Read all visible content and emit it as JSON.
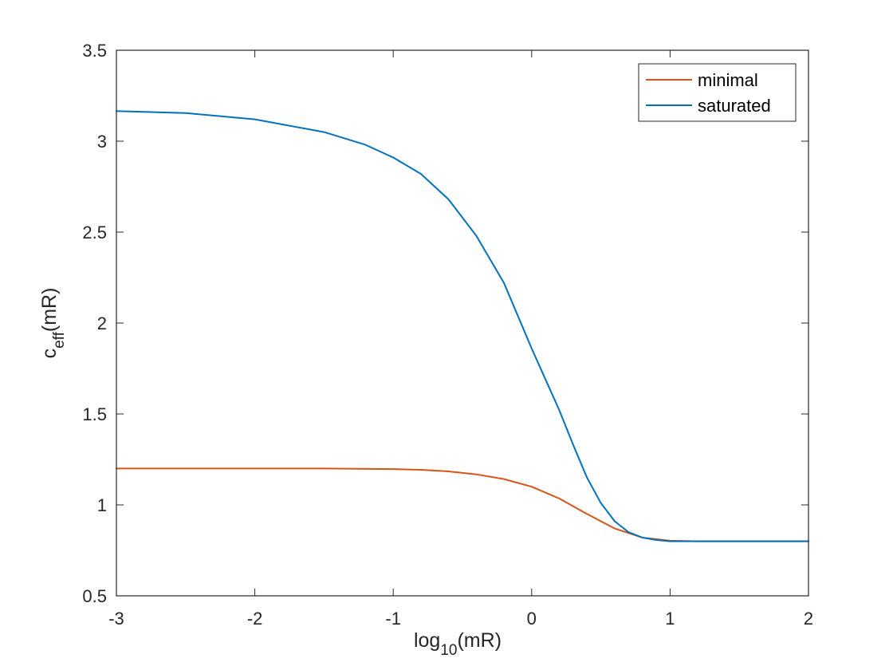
{
  "chart_data": {
    "type": "line",
    "title": "",
    "xlabel": {
      "base": "log",
      "sub": "10",
      "rest": "(mR)"
    },
    "ylabel": {
      "base": "c",
      "sub": "eff",
      "rest": "(mR)"
    },
    "xlim": [
      -3,
      2
    ],
    "ylim": [
      0.5,
      3.5
    ],
    "xticks": [
      "-3",
      "-2",
      "-1",
      "0",
      "1",
      "2"
    ],
    "yticks": [
      "0.5",
      "1",
      "1.5",
      "2",
      "2.5",
      "3",
      "3.5"
    ],
    "grid": false,
    "legend": {
      "placement": "top-right"
    },
    "series": [
      {
        "name": "minimal",
        "color": "#D95319",
        "x": [
          -3,
          -2.5,
          -2,
          -1.5,
          -1,
          -0.8,
          -0.6,
          -0.4,
          -0.2,
          0,
          0.2,
          0.4,
          0.6,
          0.8,
          1,
          1.2,
          1.5,
          2
        ],
        "y": [
          1.2,
          1.2,
          1.2,
          1.2,
          1.197,
          1.193,
          1.184,
          1.168,
          1.142,
          1.1,
          1.035,
          0.95,
          0.87,
          0.82,
          0.803,
          0.8,
          0.8,
          0.8
        ]
      },
      {
        "name": "saturated",
        "color": "#0072BD",
        "x": [
          -3,
          -2.5,
          -2,
          -1.5,
          -1.2,
          -1,
          -0.8,
          -0.6,
          -0.4,
          -0.2,
          0,
          0.2,
          0.3,
          0.4,
          0.5,
          0.6,
          0.7,
          0.8,
          0.9,
          1,
          1.2,
          1.5,
          2
        ],
        "y": [
          3.166,
          3.155,
          3.12,
          3.05,
          2.98,
          2.91,
          2.82,
          2.68,
          2.48,
          2.22,
          1.86,
          1.52,
          1.33,
          1.15,
          1.01,
          0.91,
          0.85,
          0.82,
          0.807,
          0.8,
          0.8,
          0.8,
          0.8
        ]
      }
    ]
  }
}
